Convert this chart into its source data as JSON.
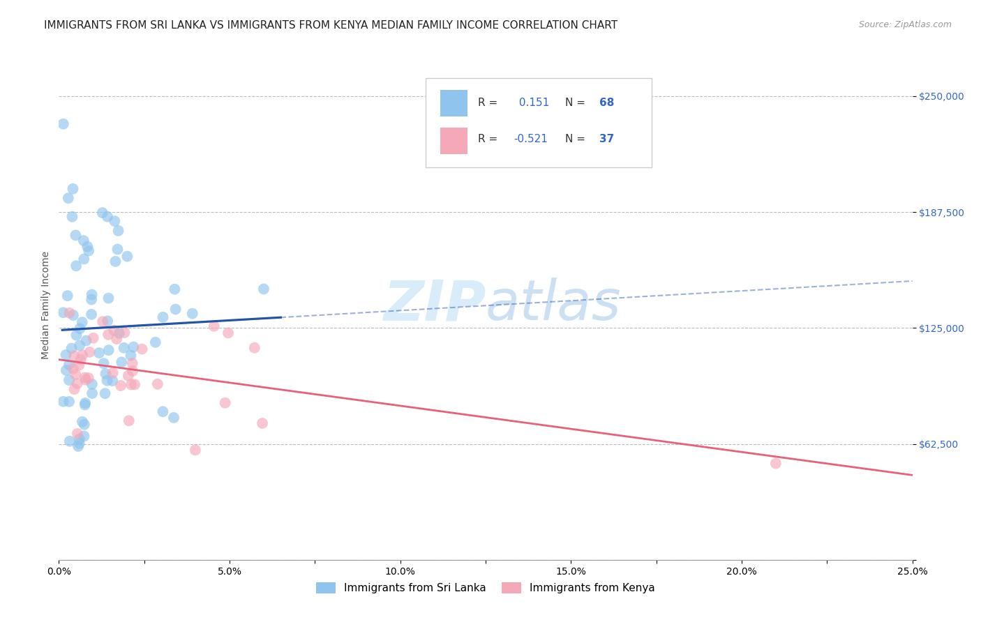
{
  "title": "IMMIGRANTS FROM SRI LANKA VS IMMIGRANTS FROM KENYA MEDIAN FAMILY INCOME CORRELATION CHART",
  "source": "Source: ZipAtlas.com",
  "ylabel": "Median Family Income",
  "xlim": [
    0.0,
    0.25
  ],
  "ylim": [
    0,
    275000
  ],
  "yticks": [
    0,
    62500,
    125000,
    187500,
    250000
  ],
  "ytick_labels": [
    "",
    "$62,500",
    "$125,000",
    "$187,500",
    "$250,000"
  ],
  "xtick_labels": [
    "0.0%",
    "",
    "5.0%",
    "",
    "10.0%",
    "",
    "15.0%",
    "",
    "20.0%",
    "",
    "25.0%"
  ],
  "xticks": [
    0.0,
    0.025,
    0.05,
    0.075,
    0.1,
    0.125,
    0.15,
    0.175,
    0.2,
    0.225,
    0.25
  ],
  "sri_lanka_color": "#8EC4EE",
  "kenya_color": "#F4A8B8",
  "sri_lanka_line_color": "#2255AA",
  "kenya_line_color": "#E8607A",
  "sri_lanka_R": 0.151,
  "sri_lanka_N": 68,
  "kenya_R": -0.521,
  "kenya_N": 37,
  "watermark_zip": "ZIP",
  "watermark_atlas": "atlas",
  "background_color": "#ffffff",
  "grid_color": "#bbbbbb",
  "title_fontsize": 11,
  "axis_label_fontsize": 10,
  "tick_fontsize": 10,
  "legend_label1": "Immigrants from Sri Lanka",
  "legend_label2": "Immigrants from Kenya",
  "tick_color": "#3366CC"
}
